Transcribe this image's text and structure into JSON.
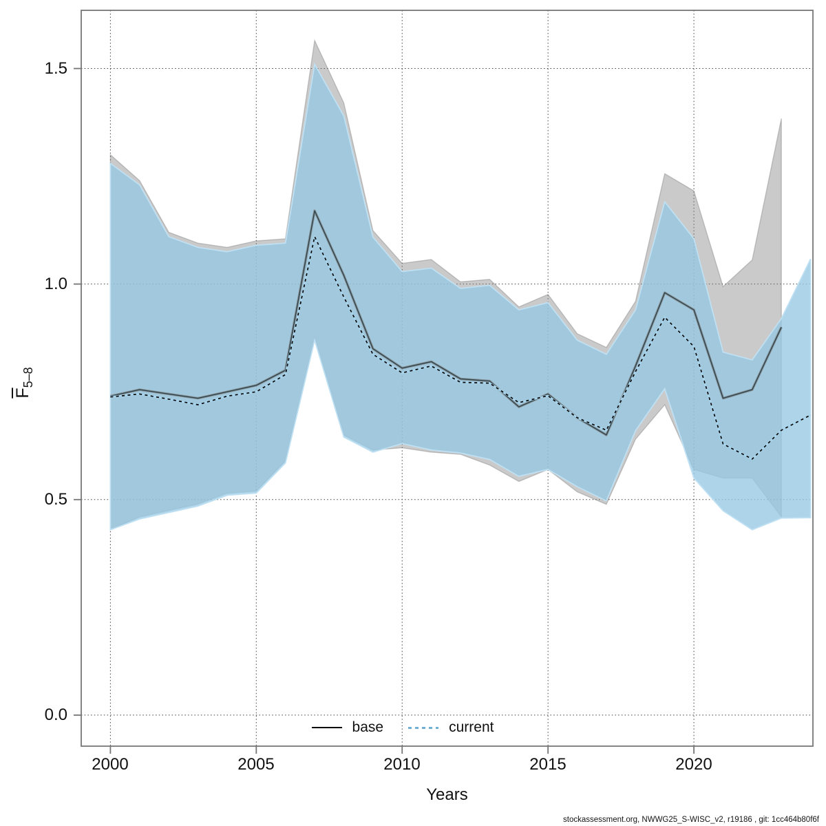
{
  "page": {
    "attribution": "stockassessment.org, NWWG25_S-WISC_v2, r19186 , git: 1cc464b80f6f"
  },
  "chart_data": {
    "type": "line",
    "title": "",
    "xlabel": "Years",
    "ylabel_base": "F",
    "ylabel_sub": "5–8",
    "xlim": [
      1999.0,
      2024.08
    ],
    "ylim": [
      -0.072,
      1.635
    ],
    "grid": true,
    "legend_position": "bottom-center",
    "x_ticks": [
      {
        "v": 2000,
        "label": "2000"
      },
      {
        "v": 2005,
        "label": "2005"
      },
      {
        "v": 2010,
        "label": "2010"
      },
      {
        "v": 2015,
        "label": "2015"
      },
      {
        "v": 2020,
        "label": "2020"
      }
    ],
    "y_ticks": [
      {
        "v": 0.0,
        "label": "0.0"
      },
      {
        "v": 0.5,
        "label": "0.5"
      },
      {
        "v": 1.0,
        "label": "1.0"
      },
      {
        "v": 1.5,
        "label": "1.5"
      }
    ],
    "series": [
      {
        "name": "base",
        "style": "solid",
        "years": [
          2000,
          2001,
          2002,
          2003,
          2004,
          2005,
          2006,
          2007,
          2008,
          2009,
          2010,
          2011,
          2012,
          2013,
          2014,
          2015,
          2016,
          2017,
          2018,
          2019,
          2020,
          2021,
          2022,
          2023
        ],
        "values": [
          0.74,
          0.755,
          0.745,
          0.735,
          0.75,
          0.765,
          0.8,
          1.17,
          1.02,
          0.85,
          0.805,
          0.82,
          0.78,
          0.775,
          0.715,
          0.745,
          0.69,
          0.65,
          0.81,
          0.98,
          0.94,
          0.735,
          0.755,
          0.9
        ],
        "ci_lower": [
          0.43,
          0.46,
          0.475,
          0.49,
          0.515,
          0.52,
          0.59,
          0.875,
          0.65,
          0.615,
          0.62,
          0.61,
          0.605,
          0.58,
          0.542,
          0.57,
          0.518,
          0.489,
          0.64,
          0.72,
          0.57,
          0.55,
          0.55,
          0.46
        ],
        "ci_upper": [
          1.3,
          1.24,
          1.12,
          1.095,
          1.085,
          1.1,
          1.105,
          1.565,
          1.42,
          1.124,
          1.048,
          1.057,
          1.005,
          1.011,
          0.947,
          0.976,
          0.885,
          0.853,
          0.96,
          1.256,
          1.216,
          0.994,
          1.056,
          1.384
        ]
      },
      {
        "name": "current",
        "style": "dashed",
        "years": [
          2000,
          2001,
          2002,
          2003,
          2004,
          2005,
          2006,
          2007,
          2008,
          2009,
          2010,
          2011,
          2012,
          2013,
          2014,
          2015,
          2016,
          2017,
          2018,
          2019,
          2020,
          2021,
          2022,
          2023,
          2024
        ],
        "values": [
          0.738,
          0.745,
          0.733,
          0.72,
          0.74,
          0.75,
          0.79,
          1.11,
          0.97,
          0.837,
          0.794,
          0.81,
          0.772,
          0.77,
          0.725,
          0.741,
          0.69,
          0.661,
          0.797,
          0.923,
          0.855,
          0.629,
          0.594,
          0.661,
          0.696
        ],
        "ci_lower": [
          0.43,
          0.455,
          0.47,
          0.485,
          0.51,
          0.515,
          0.585,
          0.87,
          0.645,
          0.61,
          0.63,
          0.615,
          0.608,
          0.593,
          0.554,
          0.57,
          0.53,
          0.497,
          0.66,
          0.757,
          0.55,
          0.474,
          0.43,
          0.457,
          0.458
        ],
        "ci_upper": [
          1.28,
          1.23,
          1.11,
          1.085,
          1.075,
          1.09,
          1.095,
          1.51,
          1.39,
          1.109,
          1.029,
          1.037,
          0.99,
          0.997,
          0.94,
          0.957,
          0.87,
          0.837,
          0.94,
          1.191,
          1.105,
          0.842,
          0.824,
          0.92,
          1.058
        ]
      }
    ],
    "colors": {
      "base_band": "rgba(128,128,128,0.42)",
      "base_band_edge": "rgba(110,110,110,0.35)",
      "current_band": "rgba(150,200,227,0.78)",
      "current_band_edge": "#bfe0f2",
      "base_line_casing": "#87949b",
      "base_line_core": "#2f434b",
      "current_line_under": "#a7d4ec",
      "current_line_dash": "#070707",
      "grid": "#3c3c3c",
      "axis": "#767676",
      "text": "#111111"
    }
  }
}
